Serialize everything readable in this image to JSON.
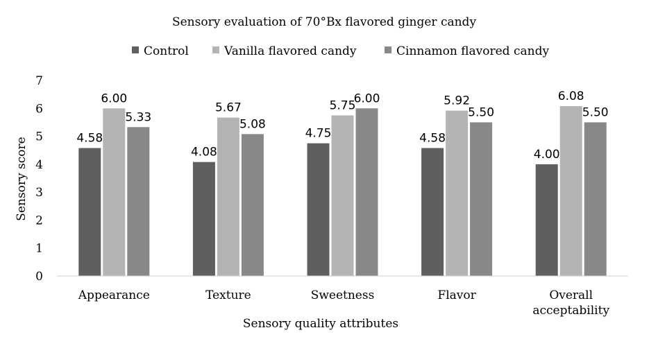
{
  "chart_data": {
    "type": "bar",
    "title": "Sensory evaluation of 70°Bx flavored ginger candy",
    "xlabel": "Sensory quality attributes",
    "ylabel": "Sensory score",
    "ylim": [
      0,
      7
    ],
    "yticks": [
      "0",
      "1",
      "2",
      "3",
      "4",
      "5",
      "6",
      "7"
    ],
    "grid": false,
    "legend_position": "top",
    "categories": [
      "Appearance",
      "Texture",
      "Sweetness",
      "Flavor",
      "Overall acceptability"
    ],
    "series": [
      {
        "name": "Control",
        "color": "#5f5f5f",
        "values": [
          4.58,
          4.08,
          4.75,
          4.58,
          4.0
        ],
        "labels": [
          "4.58",
          "4.08",
          "4.75",
          "4.58",
          "4.00"
        ]
      },
      {
        "name": "Vanilla flavored candy",
        "color": "#b4b4b4",
        "values": [
          6.0,
          5.67,
          5.75,
          5.92,
          6.08
        ],
        "labels": [
          "6.00",
          "5.67",
          "5.75",
          "5.92",
          "6.08"
        ]
      },
      {
        "name": "Cinnamon flavored candy",
        "color": "#888888",
        "values": [
          5.33,
          5.08,
          6.0,
          5.5,
          5.5
        ],
        "labels": [
          "5.33",
          "5.08",
          "6.00",
          "5.50",
          "5.50"
        ]
      }
    ]
  }
}
